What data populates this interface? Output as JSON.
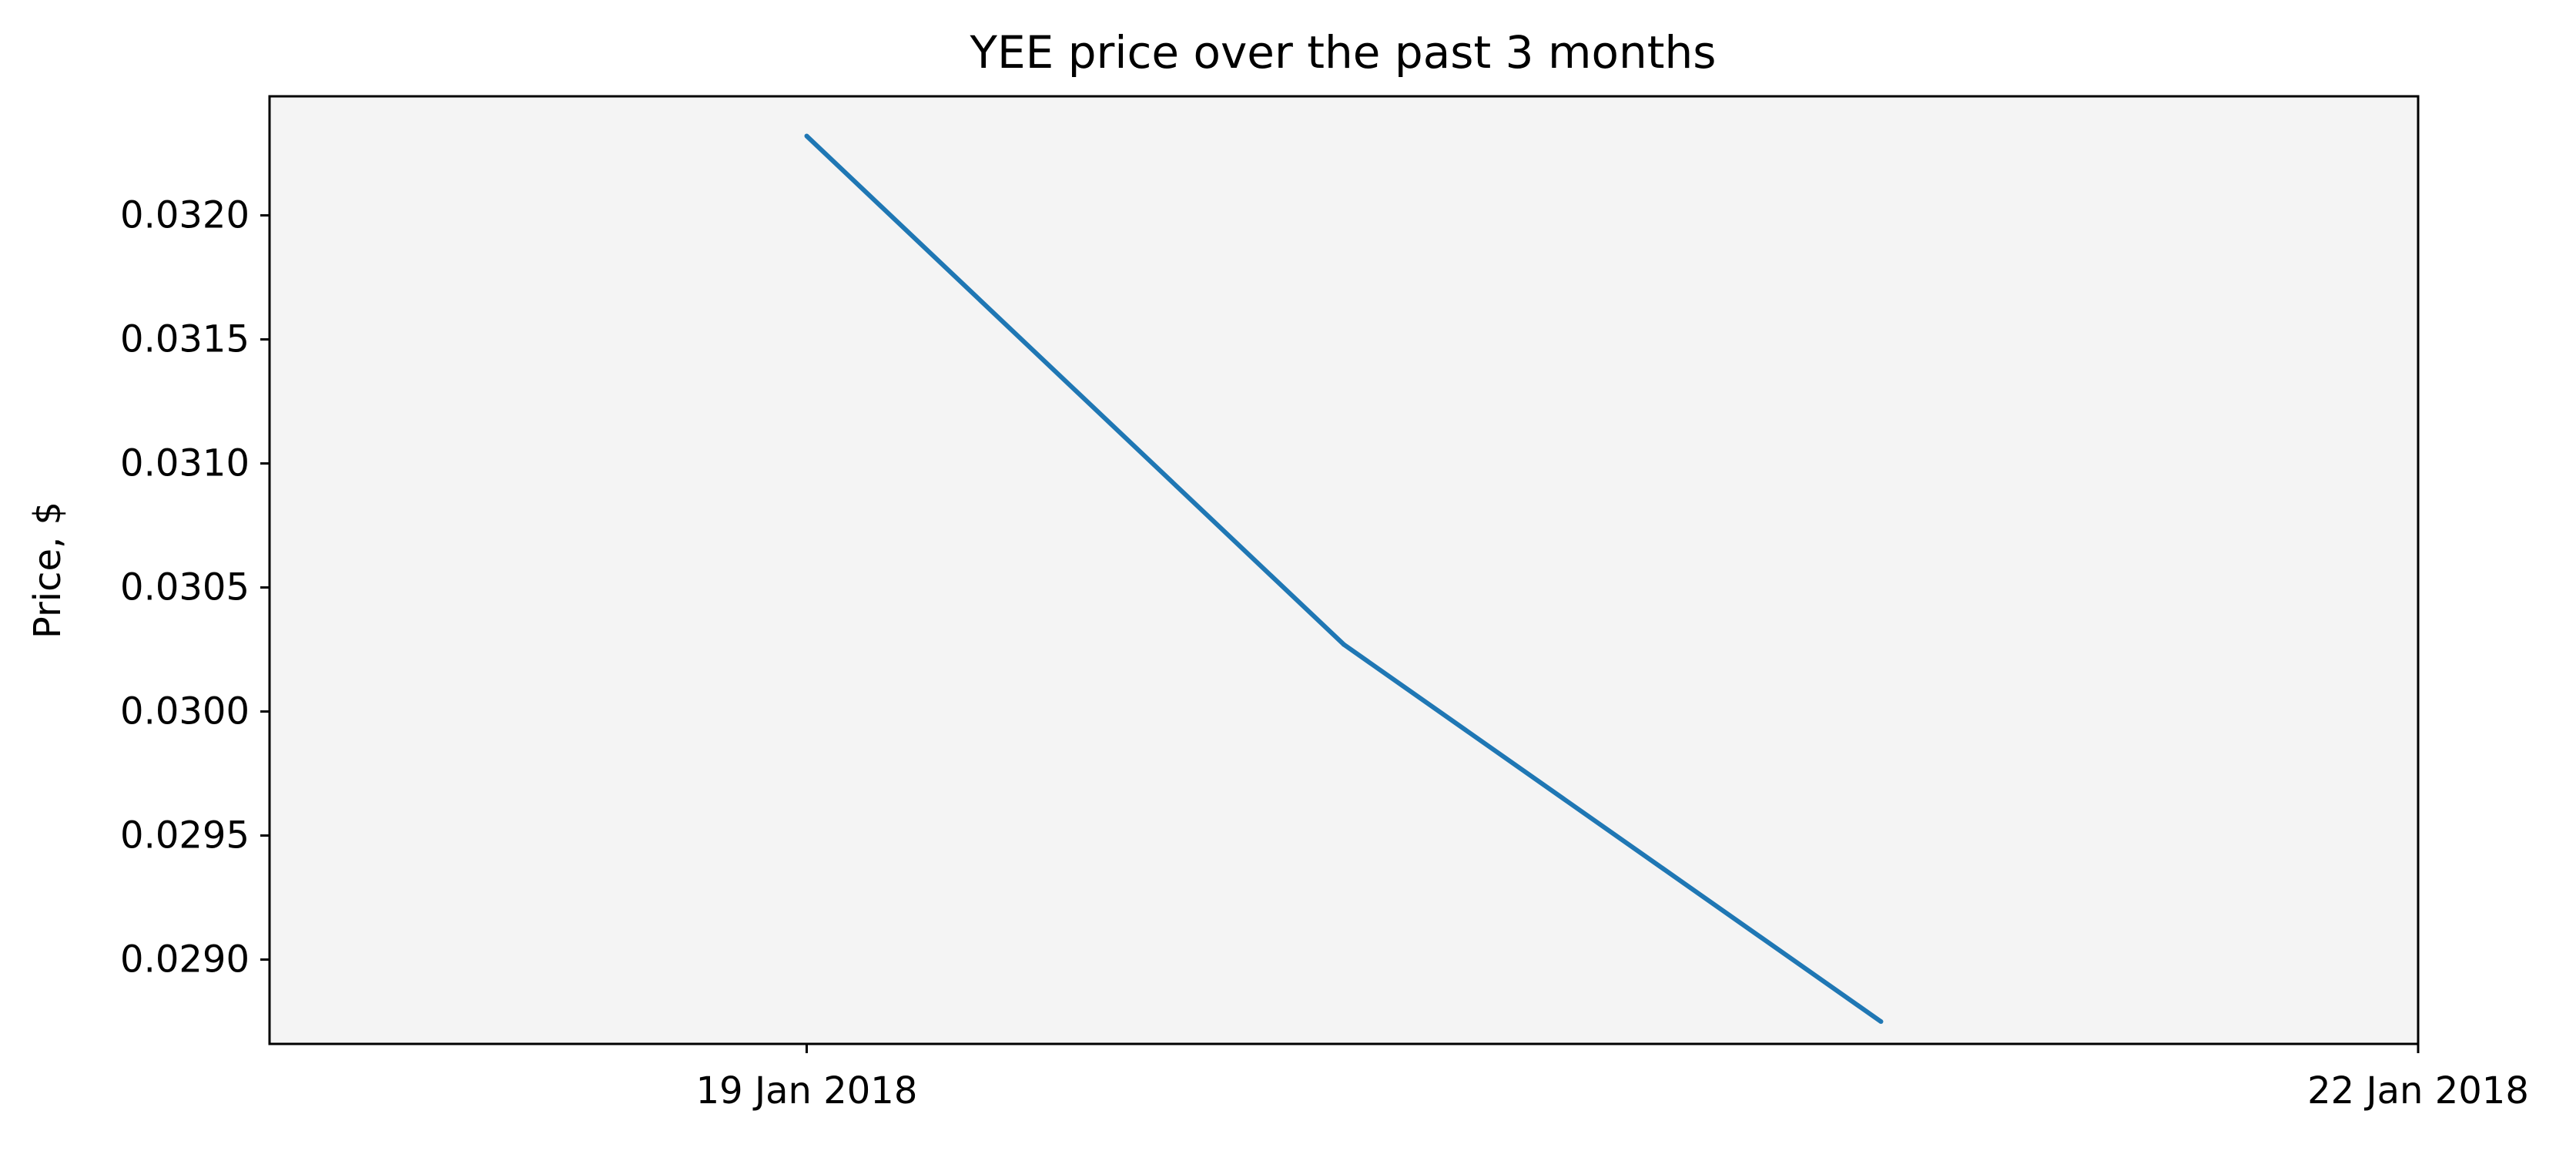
{
  "chart_data": {
    "type": "line",
    "title": "YEE price over the past 3 months",
    "xlabel": "",
    "ylabel": "Price, $",
    "x": [
      "19 Jan 2018",
      "20 Jan 2018",
      "21 Jan 2018"
    ],
    "xlim": [
      "18 Jan 2018",
      "22 Jan 2018"
    ],
    "x_ticks": [
      "19 Jan 2018",
      "22 Jan 2018"
    ],
    "ylim": [
      0.02866,
      0.03248
    ],
    "y_ticks": [
      "0.0290",
      "0.0295",
      "0.0300",
      "0.0305",
      "0.0310",
      "0.0315",
      "0.0320"
    ],
    "series": [
      {
        "values": [
          0.03232,
          0.03027,
          0.02875
        ],
        "color": "#1f77b4"
      }
    ],
    "grid": false,
    "legend": "none",
    "plot_background": "#f4f4f4"
  }
}
